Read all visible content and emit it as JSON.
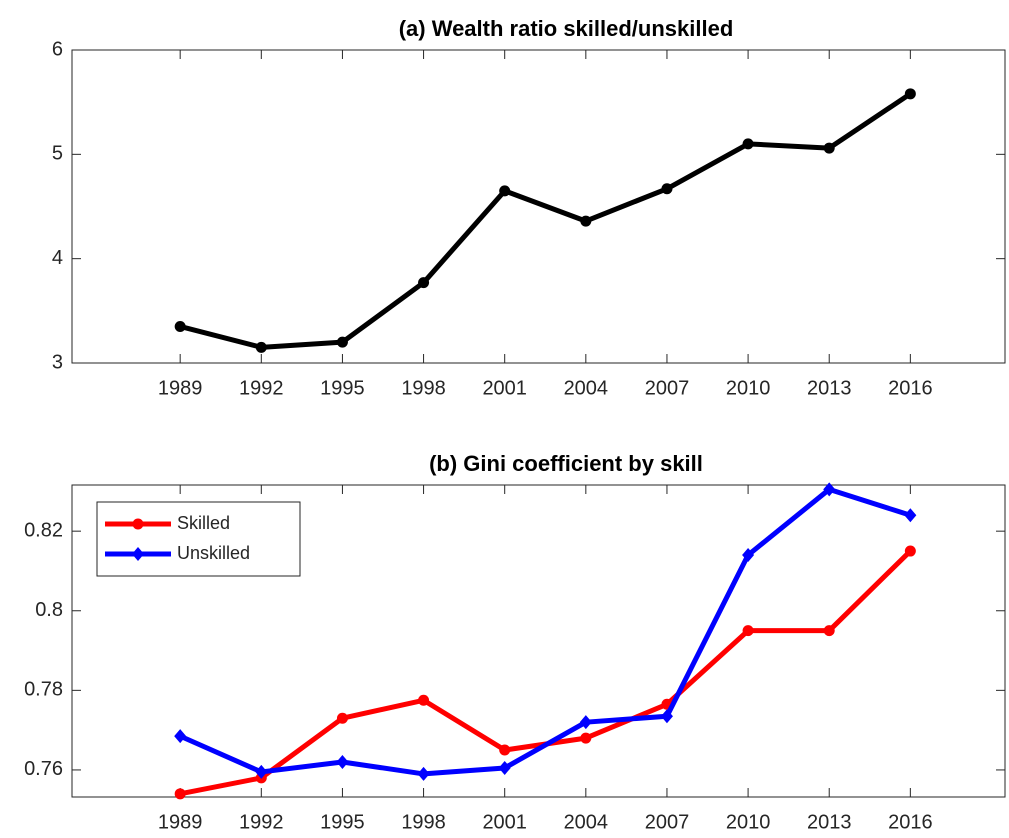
{
  "chart_data": [
    {
      "type": "line",
      "title": "(a) Wealth ratio skilled/unskilled",
      "x": [
        1989,
        1992,
        1995,
        1998,
        2001,
        2004,
        2007,
        2010,
        2013,
        2016
      ],
      "series": [
        {
          "color": "#000000",
          "marker": "circle",
          "values": [
            3.35,
            3.15,
            3.2,
            3.77,
            4.65,
            4.36,
            4.67,
            5.1,
            5.06,
            5.58
          ]
        }
      ],
      "xlim": [
        1985,
        2019.5
      ],
      "xticks": [
        1989,
        1992,
        1995,
        1998,
        2001,
        2004,
        2007,
        2010,
        2013,
        2016
      ],
      "ylim": [
        3,
        6
      ],
      "yticks": [
        3,
        4,
        5,
        6
      ]
    },
    {
      "type": "line",
      "title": "(b) Gini coefficient by skill",
      "x": [
        1989,
        1992,
        1995,
        1998,
        2001,
        2004,
        2007,
        2010,
        2013,
        2016
      ],
      "series": [
        {
          "name": "Skilled",
          "color": "#ff0000",
          "marker": "circle",
          "values": [
            0.754,
            0.758,
            0.773,
            0.7775,
            0.765,
            0.768,
            0.7765,
            0.795,
            0.795,
            0.815
          ]
        },
        {
          "name": "Unskilled",
          "color": "#0000ff",
          "marker": "diamond",
          "values": [
            0.7685,
            0.7595,
            0.762,
            0.759,
            0.7605,
            0.772,
            0.7735,
            0.814,
            0.8305,
            0.824
          ]
        }
      ],
      "xlim": [
        1985,
        2019.5
      ],
      "xticks": [
        1989,
        1992,
        1995,
        1998,
        2001,
        2004,
        2007,
        2010,
        2013,
        2016
      ],
      "ylim": [
        0.7532,
        0.8316
      ],
      "yticks": [
        0.76,
        0.78,
        0.8,
        0.82
      ],
      "legend": "upper left"
    }
  ]
}
